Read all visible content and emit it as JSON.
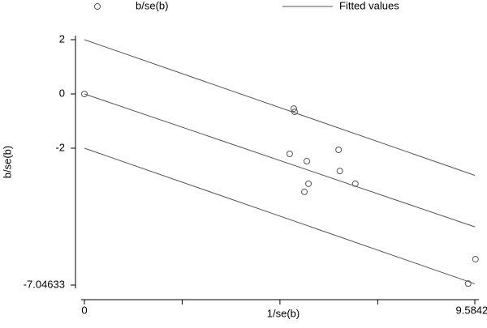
{
  "chart_data": {
    "type": "galbraith",
    "x_label": "1/se(b)",
    "y_label": "b/se(b)",
    "xlim": [
      0,
      9.58421
    ],
    "ylim": [
      -7.04633,
      2
    ],
    "xticks": [
      0,
      9.58421
    ],
    "xticks_unlabeled": [
      2.4,
      4.8,
      7.2
    ],
    "yticks": [
      2,
      0,
      -2,
      -7.04633
    ],
    "legend": "top",
    "series": [
      {
        "name": "b/se(b)",
        "type": "scatter",
        "color": "#555555",
        "x": [
          0,
          5.14,
          5.16,
          5.04,
          5.46,
          6.24,
          6.27,
          5.5,
          5.4,
          6.65,
          9.6,
          9.42
        ],
        "values": [
          0,
          -0.54,
          -0.66,
          -2.21,
          -2.48,
          -2.06,
          -2.84,
          -3.31,
          -3.61,
          -3.31,
          -6.09,
          -6.99
        ]
      },
      {
        "name": "Fitted values",
        "type": "line",
        "color": "#555555",
        "x": [
          0,
          9.58421,
          null,
          0,
          9.58421,
          null,
          0,
          9.58421
        ],
        "values": [
          2,
          -3,
          null,
          0,
          -4.9,
          null,
          -2,
          -7
        ]
      }
    ]
  }
}
